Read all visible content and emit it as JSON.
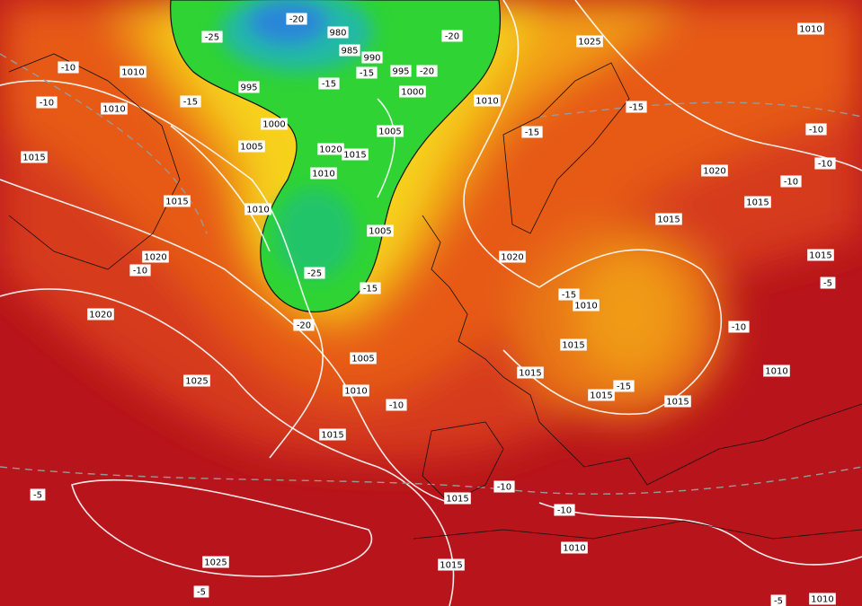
{
  "map": {
    "labels": [
      "1010",
      "1025",
      "1010",
      "-10",
      "-10",
      "1010",
      "995",
      "980",
      "985",
      "990",
      "995",
      "-20",
      "-15",
      "-25",
      "-20",
      "-20",
      "-15",
      "1000",
      "1000",
      "1005",
      "1005",
      "1020",
      "1015",
      "1010",
      "-15",
      "1010",
      "-15",
      "-15",
      "1020",
      "-10",
      "-10",
      "-10",
      "1015",
      "1015",
      "1015",
      "1010",
      "1005",
      "1015",
      "1020",
      "-10",
      "1020",
      "1015",
      "-5",
      "-25",
      "-15",
      "-15",
      "1010",
      "-20",
      "1020",
      "-10",
      "1015",
      "1005",
      "1025",
      "1015",
      "1010",
      "-10",
      "1015",
      "-15",
      "1015",
      "1010",
      "1015",
      "1015",
      "-10",
      "-5",
      "-10",
      "1010",
      "1015",
      "1025",
      "-5",
      "1010",
      "-5"
    ]
  }
}
